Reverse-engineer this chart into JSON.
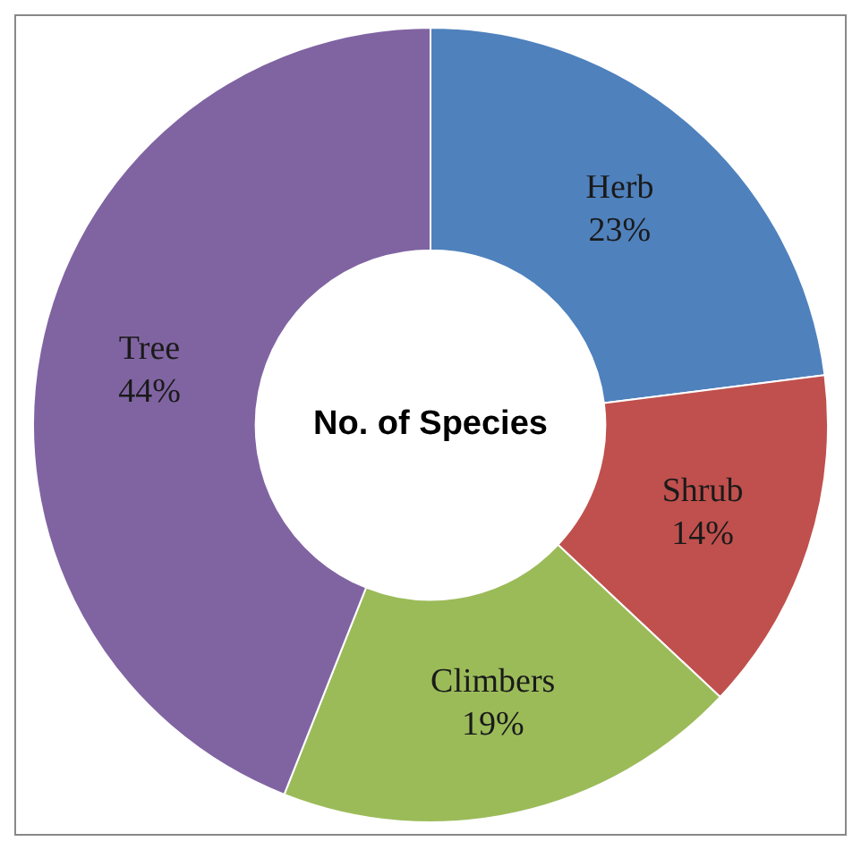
{
  "chart_data": {
    "type": "donut",
    "title": "No. of Species",
    "categories": [
      "Herb",
      "Shrub",
      "Climbers",
      "Tree"
    ],
    "values": [
      23,
      14,
      19,
      44
    ],
    "value_labels": [
      "23%",
      "14%",
      "19%",
      "44%"
    ],
    "colors": [
      "#4f81bd",
      "#c0504d",
      "#9bbb59",
      "#8064a2"
    ],
    "legend": false
  }
}
